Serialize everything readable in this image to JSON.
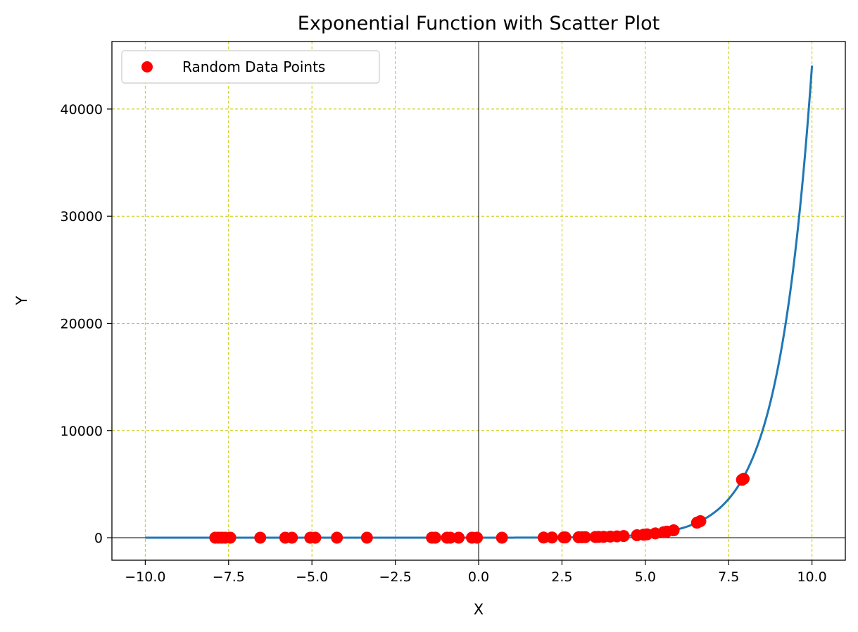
{
  "chart_data": {
    "type": "scatter",
    "title": "Exponential Function with Scatter Plot",
    "xlabel": "X",
    "ylabel": "Y",
    "xlim": [
      -11,
      11
    ],
    "ylim": [
      -2100,
      46300
    ],
    "xticks": [
      -10.0,
      -7.5,
      -5.0,
      -2.5,
      0.0,
      2.5,
      5.0,
      7.5,
      10.0
    ],
    "xtick_labels": [
      "−10.0",
      "−7.5",
      "−5.0",
      "−2.5",
      "0.0",
      "2.5",
      "5.0",
      "7.5",
      "10.0"
    ],
    "yticks": [
      0,
      10000,
      20000,
      30000,
      40000
    ],
    "ytick_labels": [
      "0",
      "10000",
      "20000",
      "30000",
      "40000"
    ],
    "grid": true,
    "grid_color": "#c8c800",
    "zero_lines": true,
    "legend": {
      "position": "top-left",
      "entries": [
        "Random Data Points"
      ]
    },
    "series": [
      {
        "type": "line",
        "color": "#1f77b4",
        "function": "2*exp(x)",
        "x_range": [
          -10,
          10
        ]
      },
      {
        "type": "scatter",
        "name": "Random Data Points",
        "color": "#ff0000",
        "x": [
          -7.9,
          -7.8,
          -7.7,
          -7.6,
          -7.45,
          -6.55,
          -5.8,
          -5.6,
          -5.05,
          -4.9,
          -4.25,
          -3.35,
          -1.4,
          -1.3,
          -0.95,
          -0.85,
          -0.6,
          -0.2,
          -0.05,
          0.7,
          1.95,
          2.2,
          2.55,
          2.6,
          3.0,
          3.1,
          3.2,
          3.5,
          3.6,
          3.75,
          3.95,
          4.15,
          4.35,
          4.75,
          4.95,
          5.05,
          5.3,
          5.55,
          5.65,
          5.85,
          6.55,
          6.65,
          7.9,
          7.95
        ],
        "y": [
          0,
          0,
          0,
          0,
          0,
          0,
          0,
          0,
          0,
          0,
          0,
          0,
          0,
          0,
          0,
          1,
          1,
          2,
          2,
          4,
          14,
          18,
          26,
          27,
          40,
          44,
          49,
          66,
          73,
          85,
          104,
          127,
          155,
          231,
          282,
          312,
          401,
          514,
          568,
          694,
          1400,
          1546,
          5400,
          5500
        ]
      }
    ]
  }
}
